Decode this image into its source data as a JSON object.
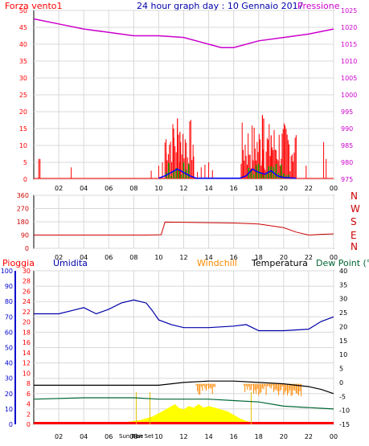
{
  "colors": {
    "wind": "#ff0000",
    "windAvg": "#0000ff",
    "gust": "#00aa00",
    "pressure": "#cc00cc",
    "dir": "#cc0000",
    "humidity": "#0000aa",
    "windchill": "#ff8800",
    "temperature": "#000000",
    "dew": "#006633",
    "rain": "#ff0000",
    "sun": "#ffff00",
    "axisBlue": "#0000cc"
  },
  "header": {
    "left": "Forza vento1",
    "center": "24 hour graph day : 10 Gennaio 2017",
    "right": "Pressione"
  },
  "x_ticks": [
    "02",
    "04",
    "06",
    "08",
    "10",
    "12",
    "14",
    "16",
    "18",
    "20",
    "22",
    "00"
  ],
  "panel1": {
    "left_ticks": [
      "0",
      "5",
      "10",
      "15",
      "20",
      "25",
      "30",
      "35",
      "40",
      "45",
      "50"
    ],
    "right_ticks": [
      "975",
      "980",
      "985",
      "990",
      "995",
      "1000",
      "1005",
      "1010",
      "1015",
      "1020",
      "1025"
    ]
  },
  "panel2": {
    "left_ticks": [
      "0",
      "90",
      "180",
      "270",
      "360"
    ],
    "compass": [
      "N",
      "W",
      "S",
      "E",
      "N"
    ]
  },
  "panel3": {
    "labels": {
      "rain": "Pioggia",
      "humidity": "Umidita",
      "windchill": "Windchill",
      "temperature": "Temperatura",
      "dew": "Dew Point (°C"
    },
    "rain_ticks": [
      "0",
      "2",
      "4",
      "6",
      "8",
      "10",
      "12",
      "14",
      "16",
      "18",
      "20",
      "22",
      "24",
      "26",
      "28",
      "30"
    ],
    "hum_ticks": [
      "0",
      "10",
      "20",
      "30",
      "40",
      "50",
      "60",
      "70",
      "80",
      "90",
      "100"
    ],
    "temp_ticks": [
      "-15",
      "-10",
      "-5",
      "0",
      "5",
      "10",
      "15",
      "20",
      "25",
      "30",
      "35",
      "40"
    ],
    "sunrise_label": "Sun Rise",
    "sunset_label": "Sun Set"
  },
  "chart_data": [
    {
      "type": "line",
      "title": "24 hour graph day : 10 Gennaio 2017",
      "ylabel": "Forza vento1",
      "ylim": [
        0,
        50
      ],
      "y2label": "Pressione",
      "y2lim": [
        975,
        1025
      ],
      "series": [
        {
          "name": "Pressione",
          "x": [
            0,
            2,
            4,
            6,
            8,
            10,
            12,
            14,
            15,
            16,
            18,
            20,
            22,
            24
          ],
          "values": [
            1022.5,
            1021,
            1019.5,
            1018.5,
            1017.5,
            1017.5,
            1017,
            1015,
            1014,
            1014,
            1016,
            1017,
            1018,
            1019.5
          ]
        }
      ]
    },
    {
      "type": "line",
      "ylim": [
        0,
        360
      ],
      "series": [
        {
          "x": [
            0,
            8,
            9,
            10.2,
            10.5,
            16,
            18,
            20,
            21,
            22,
            23,
            24
          ],
          "values": [
            90,
            90,
            90,
            92,
            178,
            172,
            165,
            140,
            110,
            90,
            95,
            98
          ]
        }
      ]
    },
    {
      "type": "line",
      "ylim": [
        0,
        100
      ],
      "y2lim": [
        -15,
        40
      ],
      "series": [
        {
          "name": "Umidita",
          "x": [
            0,
            2,
            3,
            4,
            5,
            6,
            7,
            8,
            9,
            9.5,
            10,
            11,
            12,
            14,
            16,
            17,
            18,
            20,
            22,
            23,
            24
          ],
          "values": [
            72,
            72,
            74,
            76,
            72,
            75,
            79,
            81,
            79,
            74,
            68,
            65,
            63,
            63,
            64,
            65,
            61,
            61,
            62,
            67,
            70
          ]
        },
        {
          "name": "Temperatura",
          "x": [
            0,
            4,
            8,
            10,
            12,
            14,
            16,
            18,
            20,
            22,
            23,
            24
          ],
          "values": [
            -1,
            -1,
            -1,
            -1,
            0,
            0.5,
            0.5,
            0,
            -0.5,
            -1.5,
            -2.5,
            -4
          ]
        },
        {
          "name": "Dew Point (°C",
          "x": [
            0,
            4,
            8,
            10,
            12,
            14,
            16,
            18,
            20,
            22,
            24
          ],
          "values": [
            -6,
            -5.5,
            -5.5,
            -6,
            -6,
            -6,
            -6.5,
            -7,
            -8.5,
            -9,
            -9.5
          ]
        }
      ]
    }
  ]
}
